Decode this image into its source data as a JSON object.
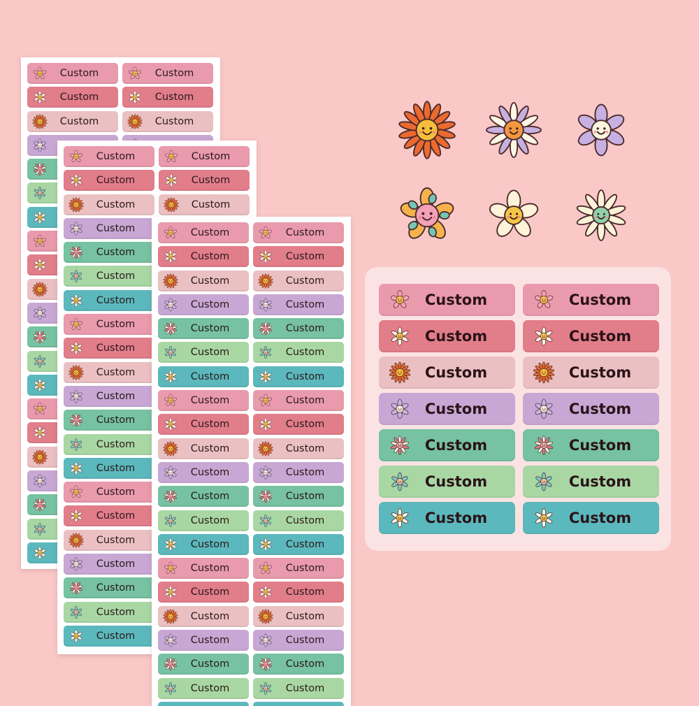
{
  "label_text": "Custom",
  "colors": {
    "background": "#f9c8c7",
    "label_pink": "#e99aac",
    "label_rose": "#e27d8a",
    "label_blush": "#ebc0c2",
    "label_lavender": "#c8a7d4",
    "label_mint": "#76c2a2",
    "label_sage": "#a8d7a4",
    "label_teal": "#5bb8bd"
  },
  "sheet_label_sequence": [
    "pink",
    "rose",
    "blush",
    "lavender",
    "mint",
    "sage",
    "teal",
    "pink",
    "rose",
    "blush",
    "lavender",
    "mint",
    "sage",
    "teal",
    "pink",
    "rose",
    "blush",
    "lavender",
    "mint",
    "sage",
    "teal"
  ],
  "card_label_sequence": [
    "pink",
    "rose",
    "blush",
    "lavender",
    "mint",
    "sage",
    "teal"
  ],
  "flower_icons": {
    "pink": "smiling-pink-flower-icon",
    "rose": "white-daisy-icon",
    "blush": "orange-sunflower-icon",
    "lavender": "lavender-flower-icon",
    "mint": "pink-white-daisy-icon",
    "sage": "teal-flower-icon",
    "teal": "white-daisy-icon"
  },
  "showcase_flowers": [
    "orange-sunflower-icon",
    "white-lavender-daisy-icon",
    "lavender-flower-icon",
    "pink-yellow-flower-icon",
    "cream-flower-icon",
    "cream-green-daisy-icon"
  ]
}
